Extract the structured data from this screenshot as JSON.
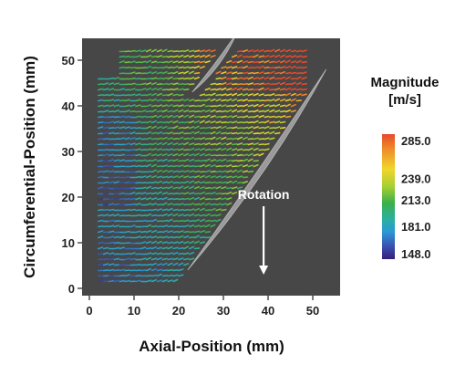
{
  "chart_data": {
    "type": "vector-field",
    "xlabel": "Axial-Position (mm)",
    "ylabel": "Circumferential-Position (mm)",
    "xlim": [
      -2,
      55
    ],
    "ylim": [
      -1,
      56
    ],
    "xticks": [
      "0",
      "10",
      "20",
      "30",
      "40",
      "50"
    ],
    "yticks": [
      "0",
      "10",
      "20",
      "30",
      "40",
      "50"
    ],
    "background": "#474747",
    "colorbar": {
      "title_line1": "Magnitude",
      "title_line2": "[m/s]",
      "ticks": [
        "285.0",
        "239.0",
        "213.0",
        "181.0",
        "148.0"
      ],
      "values": [
        285.0,
        239.0,
        213.0,
        181.0,
        148.0
      ],
      "colors": [
        "#e8492a",
        "#f0d62a",
        "#3cb04a",
        "#2a9ad6",
        "#34207a"
      ]
    },
    "annotation": {
      "text": "Rotation",
      "arrow_direction": "down",
      "x": 39,
      "y_from": 18,
      "y_to": 3
    },
    "blades": [
      {
        "name": "upper-blade",
        "leading": [
          23,
          43
        ],
        "trailing": [
          33,
          56
        ]
      },
      {
        "name": "lower-blade",
        "leading": [
          22,
          4
        ],
        "trailing": [
          53,
          48
        ]
      }
    ],
    "field_description": {
      "dx_mm": 1.2,
      "dy_mm": 1.2,
      "mean_flow_direction_deg": 15
    }
  }
}
